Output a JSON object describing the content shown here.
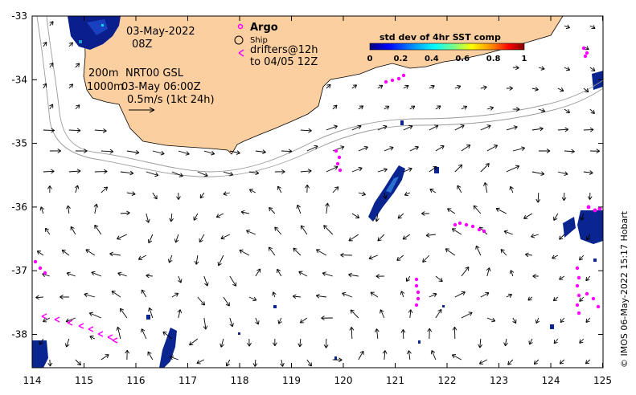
{
  "map": {
    "date": "03-May-2022",
    "hour": "08Z",
    "depth_200": "200m",
    "depth_1000": "1000m",
    "product": "NRT00 GSL",
    "analysis_time": "03-May 06:00Z",
    "scale_label": "0.5m/s (1kt 24h)",
    "credit": "© IMOS 06-May-2022 15:17 Hobart",
    "x_ticks": [
      "114",
      "115",
      "116",
      "117",
      "118",
      "119",
      "120",
      "121",
      "122",
      "123",
      "124",
      "125"
    ],
    "y_ticks": [
      "-33",
      "-34",
      "-35",
      "-36",
      "-37",
      "-38"
    ],
    "colors": {
      "land": "#FCCFA0",
      "argo": "#FF00FF",
      "drifter": "#FF00FF"
    }
  },
  "legend": {
    "argo_label": "Argo",
    "ship_label": "Ship",
    "drifters_label": "drifters@12h",
    "drifters_period": "to 04/05 12Z"
  },
  "colorbar": {
    "title": "std dev of 4hr SST comp",
    "ticks": [
      "0",
      "0.2",
      "0.4",
      "0.6",
      "0.8",
      "1"
    ],
    "colormap": [
      "#000080",
      "#0000ff",
      "#00a0ff",
      "#00ffff",
      "#80ff80",
      "#ffff00",
      "#ff8000",
      "#ff0000",
      "#800000"
    ]
  }
}
